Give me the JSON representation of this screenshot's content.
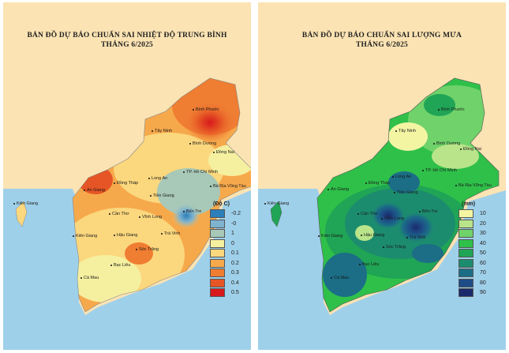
{
  "temperature_map": {
    "title_line1": "BẢN ĐỒ DỰ BÁO CHUẨN SAI NHIỆT ĐỘ TRUNG BÌNH",
    "title_line2": "THÁNG 6/2025",
    "places": [
      "Bình Phước",
      "Tây Ninh",
      "Bình Dương",
      "Đồng Nai",
      "TP. Hồ Chí Minh",
      "Long An",
      "Đồng Tháp",
      "An Giang",
      "Tiền Giang",
      "Bà Rịa Vũng Tàu",
      "Bến Tre",
      "Vĩnh Long",
      "Kiên Giang",
      "Cần Thơ",
      "Hậu Giang",
      "Trà Vinh",
      "Sóc Trăng",
      "Bạc Liêu",
      "Cà Mau"
    ],
    "legend": {
      "title": "(Độ C)",
      "items": [
        {
          "label": "-0.2",
          "color": "#2c7fb8"
        },
        {
          "label": "-0",
          "color": "#7fb3cf"
        },
        {
          "label": "1",
          "color": "#a8c8b8"
        },
        {
          "label": "0",
          "color": "#f5f0a0"
        },
        {
          "label": "0.1",
          "color": "#fbd77e"
        },
        {
          "label": "0.2",
          "color": "#f6a94b"
        },
        {
          "label": "0.3",
          "color": "#ef7d32"
        },
        {
          "label": "0.4",
          "color": "#e65525"
        },
        {
          "label": "0.5",
          "color": "#d7191c"
        }
      ]
    }
  },
  "rainfall_map": {
    "title_line1": "BẢN ĐỒ DỰ BÁO CHUẨN SAI LƯỢNG MƯA",
    "title_line2": "THÁNG 6/2025",
    "places": [
      "Bình Phước",
      "Tây Ninh",
      "Bình Dương",
      "Đồng Nai",
      "TP. Hồ Chí Minh",
      "Long An",
      "An Giang",
      "Đồng Tháp",
      "Tiền Giang",
      "Bà Rịa Vũng Tàu",
      "Kiên Giang",
      "Cần Thơ",
      "Bến Tre",
      "Vĩnh Long",
      "Hậu Giang",
      "Trà Vinh",
      "Sóc Trăng",
      "Bạc Liêu",
      "Cà Mau"
    ],
    "legend": {
      "title": "(mm)",
      "items": [
        {
          "label": "10",
          "color": "#f3f5a3"
        },
        {
          "label": "20",
          "color": "#b9e48a"
        },
        {
          "label": "30",
          "color": "#6fd26a"
        },
        {
          "label": "40",
          "color": "#2fc04a"
        },
        {
          "label": "50",
          "color": "#20a455"
        },
        {
          "label": "60",
          "color": "#1c8c6e"
        },
        {
          "label": "70",
          "color": "#1b6e86"
        },
        {
          "label": "80",
          "color": "#1d4c86"
        },
        {
          "label": "90",
          "color": "#1a2a6a"
        }
      ]
    }
  },
  "colors": {
    "sea": "#9fd0ea",
    "land_background": "#fbe3b3"
  }
}
